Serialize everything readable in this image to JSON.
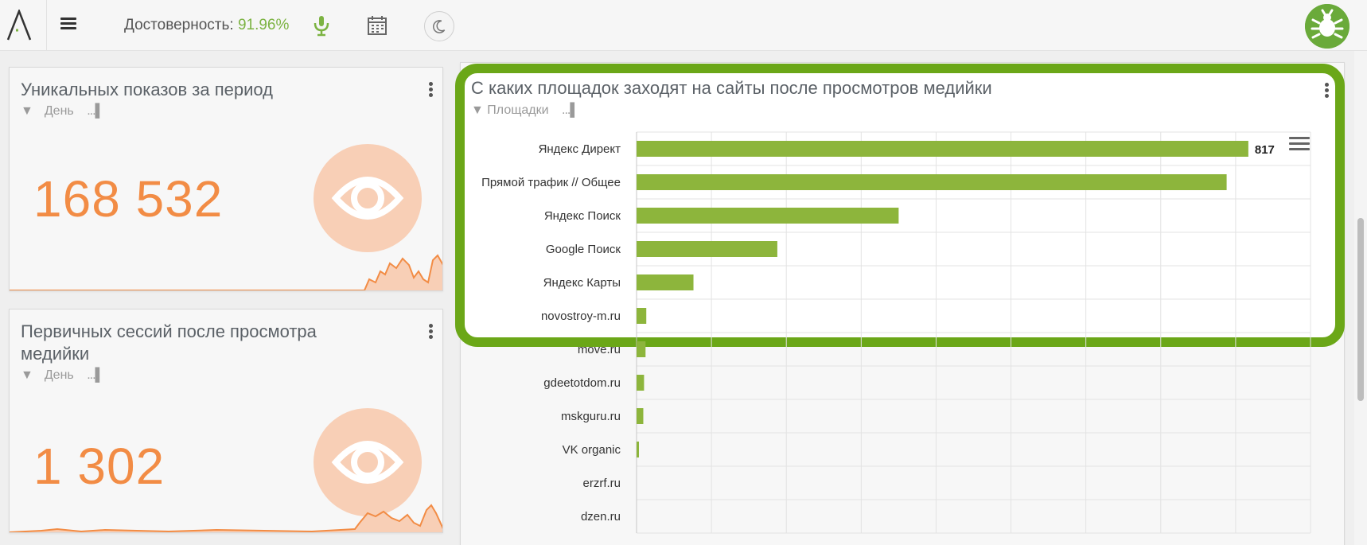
{
  "topbar": {
    "reliability_label": "Достоверность:",
    "reliability_value": "91.96%",
    "icons": [
      "logo-icon",
      "menu-icon",
      "microphone-icon",
      "calendar-icon",
      "moon-icon",
      "bug-icon"
    ]
  },
  "cards": [
    {
      "title": "Уникальных показов за период",
      "filter": "День",
      "value": "168 532",
      "icon": "eye-icon"
    },
    {
      "title_line1": "Первичных сессий после просмотра",
      "title_line2": "медийки",
      "filter": "День",
      "value": "1 302",
      "icon": "eye-icon"
    }
  ],
  "chart_card": {
    "title": "С каких площадок заходят на сайты после просмотров медийки",
    "filter": "Площадки"
  },
  "chart_data": {
    "type": "bar",
    "orientation": "horizontal",
    "categories": [
      "Яндекс Директ",
      "Прямой трафик // Общее",
      "Яндекс Поиск",
      "Google Поиск",
      "Яндекс Карты",
      "novostroy-m.ru",
      "move.ru",
      "gdeetotdom.ru",
      "mskguru.ru",
      "VK organic",
      "erzrf.ru",
      "dzen.ru"
    ],
    "values": [
      817,
      788,
      350,
      188,
      76,
      13,
      12,
      10,
      9,
      3,
      0,
      0
    ],
    "data_labels": [
      "817",
      "",
      "",
      "",
      "",
      "",
      "",
      "",
      "",
      "",
      "",
      ""
    ],
    "xlim": [
      0,
      900
    ],
    "grid": true,
    "bar_color": "#8db53c"
  },
  "colors": {
    "accent_green": "#6ba718",
    "value_orange": "#f28c45",
    "eye_circle": "#f8cfb6"
  }
}
